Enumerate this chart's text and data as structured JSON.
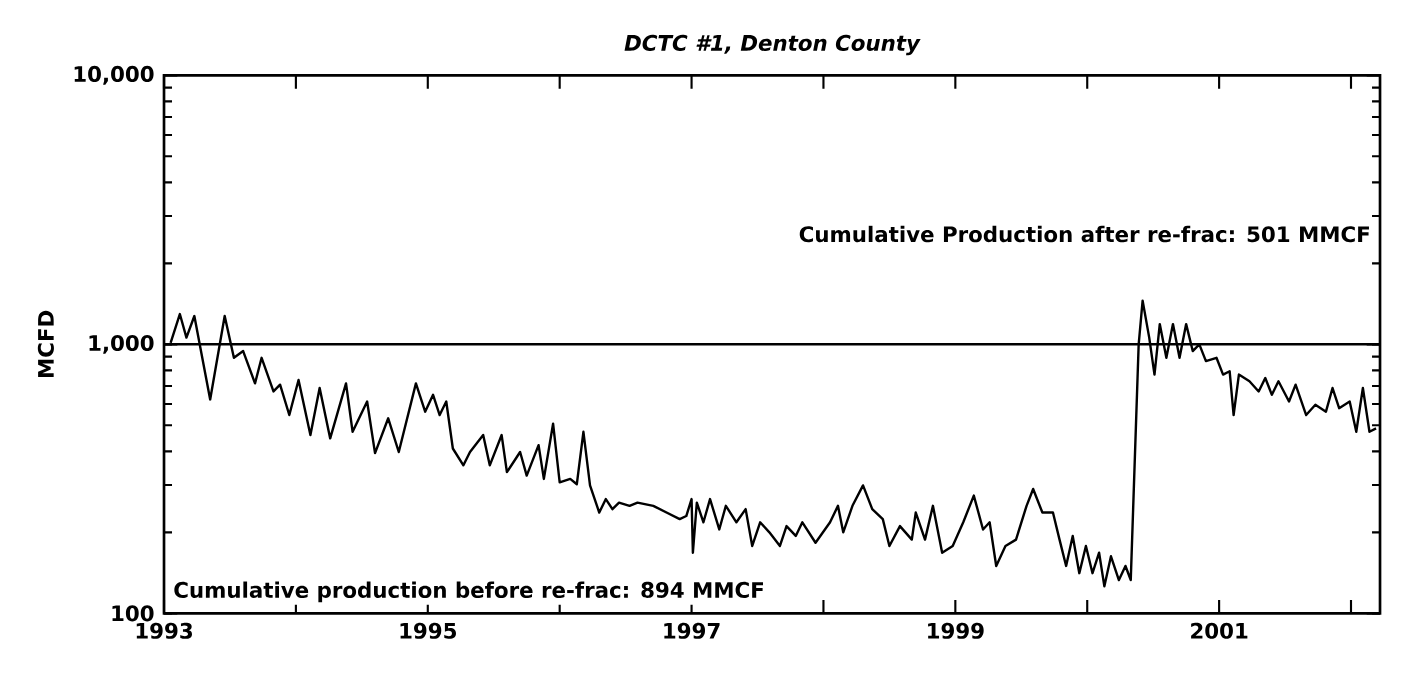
{
  "chart_data": {
    "type": "line",
    "title": "DCTC #1, Denton County",
    "ylabel": "MCFD",
    "log": "y",
    "marker": "none",
    "line_style": "solid",
    "xlim": [
      1993,
      2002.22
    ],
    "ylim": [
      100,
      10000
    ],
    "xticks": [
      1993,
      {
        "value": 1994,
        "label": null
      },
      1995,
      {
        "value": 1996,
        "label": null
      },
      1997,
      {
        "value": 1998,
        "label": null
      },
      1999,
      {
        "value": 2000,
        "label": null
      },
      2001,
      {
        "value": 2002,
        "label": null
      }
    ],
    "yticks": [
      {
        "value": 100,
        "label": "100"
      },
      {
        "value": 1000,
        "label": "1,000"
      },
      {
        "value": 10000,
        "label": "10,000"
      }
    ],
    "ref_lines": [
      {
        "axis": "y",
        "value": 1000,
        "color": "#000000"
      }
    ],
    "annotations": [
      "Cumulative Production after re-frac: 501 MMCF",
      "Cumulative production before re-frac: 894 MMCF"
    ],
    "series": [
      {
        "color": "#000000",
        "x": [
          1993.05,
          1993.12,
          1993.17,
          1993.23,
          1993.35,
          1993.46,
          1993.53,
          1993.6,
          1993.69,
          1993.74,
          1993.83,
          1993.88,
          1993.95,
          1994.02,
          1994.11,
          1994.18,
          1994.26,
          1994.38,
          1994.43,
          1994.54,
          1994.6,
          1994.7,
          1994.78,
          1994.91,
          1994.98,
          1995.04,
          1995.09,
          1995.14,
          1995.19,
          1995.27,
          1995.32,
          1995.42,
          1995.47,
          1995.56,
          1995.6,
          1995.7,
          1995.75,
          1995.84,
          1995.88,
          1995.95,
          1996.0,
          1996.08,
          1996.13,
          1996.18,
          1996.23,
          1996.3,
          1996.35,
          1996.4,
          1996.45,
          1996.53,
          1996.59,
          1996.71,
          1996.81,
          1996.91,
          1996.96,
          1997.0,
          1997.01,
          1997.04,
          1997.09,
          1997.14,
          1997.21,
          1997.26,
          1997.34,
          1997.41,
          1997.46,
          1997.52,
          1997.59,
          1997.67,
          1997.72,
          1997.79,
          1997.84,
          1997.94,
          1998.05,
          1998.11,
          1998.15,
          1998.22,
          1998.3,
          1998.37,
          1998.45,
          1998.5,
          1998.58,
          1998.67,
          1998.7,
          1998.77,
          1998.83,
          1998.9,
          1998.98,
          1999.06,
          1999.14,
          1999.21,
          1999.26,
          1999.31,
          1999.38,
          1999.46,
          1999.54,
          1999.59,
          1999.66,
          1999.74,
          1999.79,
          1999.84,
          1999.89,
          1999.94,
          1999.99,
          2000.04,
          2000.09,
          2000.13,
          2000.18,
          2000.24,
          2000.29,
          2000.33,
          2000.39,
          2000.42,
          2000.47,
          2000.51,
          2000.55,
          2000.6,
          2000.65,
          2000.7,
          2000.75,
          2000.8,
          2000.85,
          2000.9,
          2000.98,
          2001.03,
          2001.08,
          2001.11,
          2001.15,
          2001.23,
          2001.3,
          2001.35,
          2001.4,
          2001.45,
          2001.53,
          2001.58,
          2001.66,
          2001.73,
          2001.81,
          2001.86,
          2001.91,
          2001.99,
          2002.04,
          2002.09,
          2002.14,
          2002.19
        ],
        "values": [
          1012,
          1296,
          1059,
          1274,
          624,
          1274,
          891,
          944,
          716,
          891,
          668,
          708,
          546,
          737,
          460,
          688,
          447,
          716,
          473,
          613,
          394,
          531,
          398,
          716,
          562,
          649,
          546,
          613,
          410,
          355,
          398,
          460,
          355,
          460,
          335,
          398,
          325,
          422,
          316,
          507,
          307,
          316,
          302,
          473,
          299,
          237,
          266,
          244,
          258,
          251,
          258,
          251,
          237,
          224,
          230,
          266,
          168,
          258,
          218,
          266,
          205,
          251,
          218,
          244,
          178,
          218,
          200,
          178,
          211,
          194,
          218,
          183,
          218,
          251,
          200,
          251,
          299,
          244,
          224,
          178,
          211,
          188,
          237,
          188,
          251,
          168,
          178,
          218,
          274,
          205,
          218,
          150,
          178,
          188,
          251,
          290,
          237,
          237,
          188,
          150,
          194,
          141,
          178,
          141,
          168,
          126,
          163,
          133,
          150,
          133,
          1000,
          1454,
          1059,
          772,
          1189,
          891,
          1189,
          891,
          1189,
          944,
          1000,
          866,
          891,
          772,
          794,
          546,
          772,
          729,
          668,
          750,
          649,
          729,
          613,
          708,
          546,
          596,
          562,
          688,
          579,
          613,
          473,
          688,
          473,
          487
        ]
      }
    ]
  }
}
